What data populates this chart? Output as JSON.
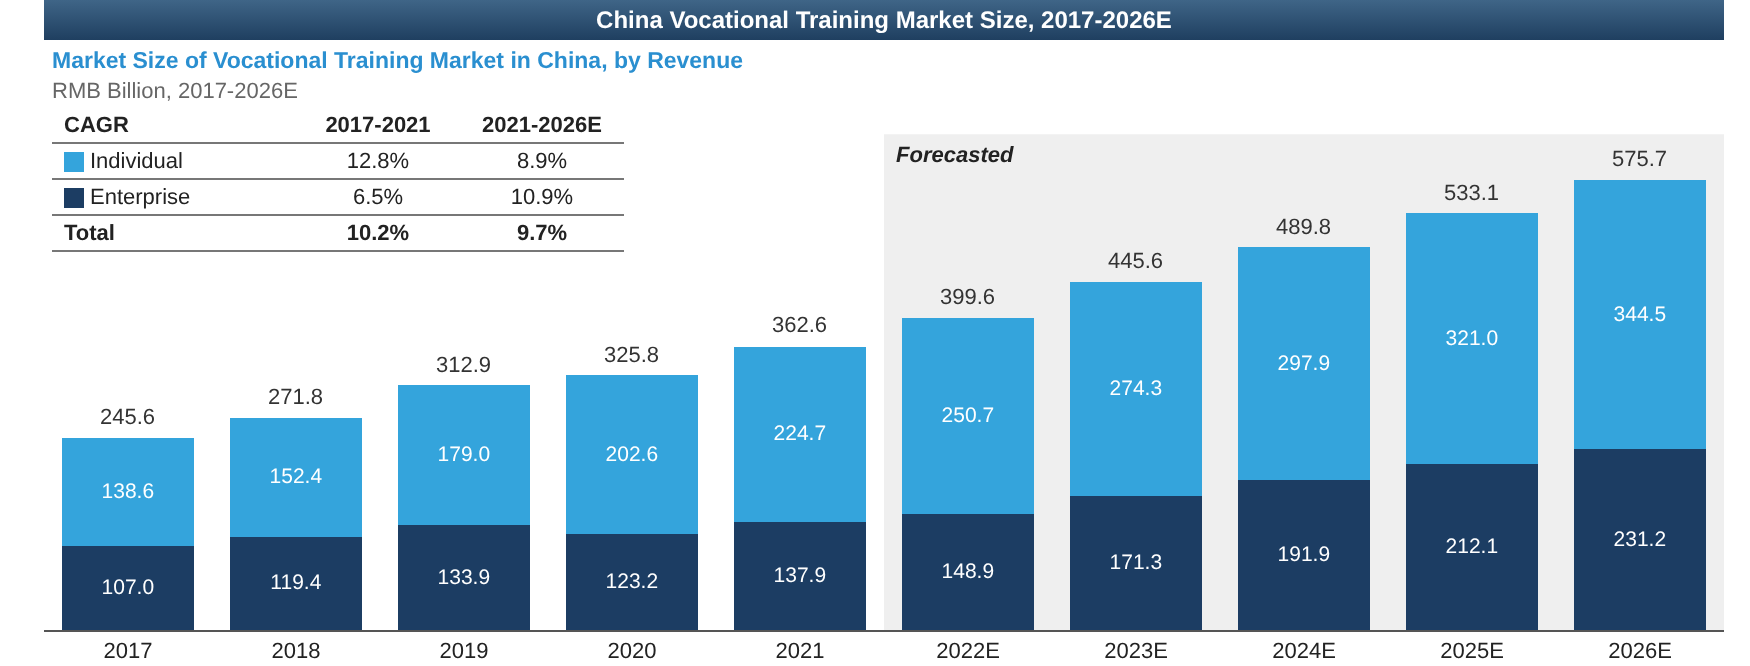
{
  "chart_data": {
    "type": "bar",
    "stacked": true,
    "title": "China Vocational Training Market Size, 2017-2026E",
    "subtitle": "Market Size of Vocational Training Market in China, by Revenue",
    "ylabel": "RMB Billion, 2017-2026E",
    "categories": [
      "2017",
      "2018",
      "2019",
      "2020",
      "2021",
      "2022E",
      "2023E",
      "2024E",
      "2025E",
      "2026E"
    ],
    "series": [
      {
        "name": "Enterprise",
        "color": "#1c3d63",
        "values": [
          107.0,
          119.4,
          133.9,
          123.2,
          137.9,
          148.9,
          171.3,
          191.9,
          212.1,
          231.2
        ],
        "value_labels": [
          "107.0",
          "119.4",
          "133.9",
          "123.2",
          "137.9",
          "148.9",
          "171.3",
          "191.9",
          "212.1",
          "231.2"
        ]
      },
      {
        "name": "Individual",
        "color": "#34a4dc",
        "values": [
          138.6,
          152.4,
          179.0,
          202.6,
          224.7,
          250.7,
          274.3,
          297.9,
          321.0,
          344.5
        ],
        "value_labels": [
          "138.6",
          "152.4",
          "179.0",
          "202.6",
          "224.7",
          "250.7",
          "274.3",
          "297.9",
          "321.0",
          "344.5"
        ]
      }
    ],
    "totals": [
      "245.6",
      "271.8",
      "312.9",
      "325.8",
      "362.6",
      "399.6",
      "445.6",
      "489.8",
      "533.1",
      "575.7"
    ],
    "bands": [
      {
        "axis": "x",
        "from": "2022E",
        "to": "2026E",
        "label": "Forecasted",
        "color": "#efefef"
      }
    ],
    "annotations": [
      "CAGR",
      "2017-2021",
      "2021-2026E",
      "12.8%",
      "8.9%",
      "6.5%",
      "10.9%",
      "Total",
      "10.2%",
      "9.7%"
    ],
    "legend": "top left"
  }
}
